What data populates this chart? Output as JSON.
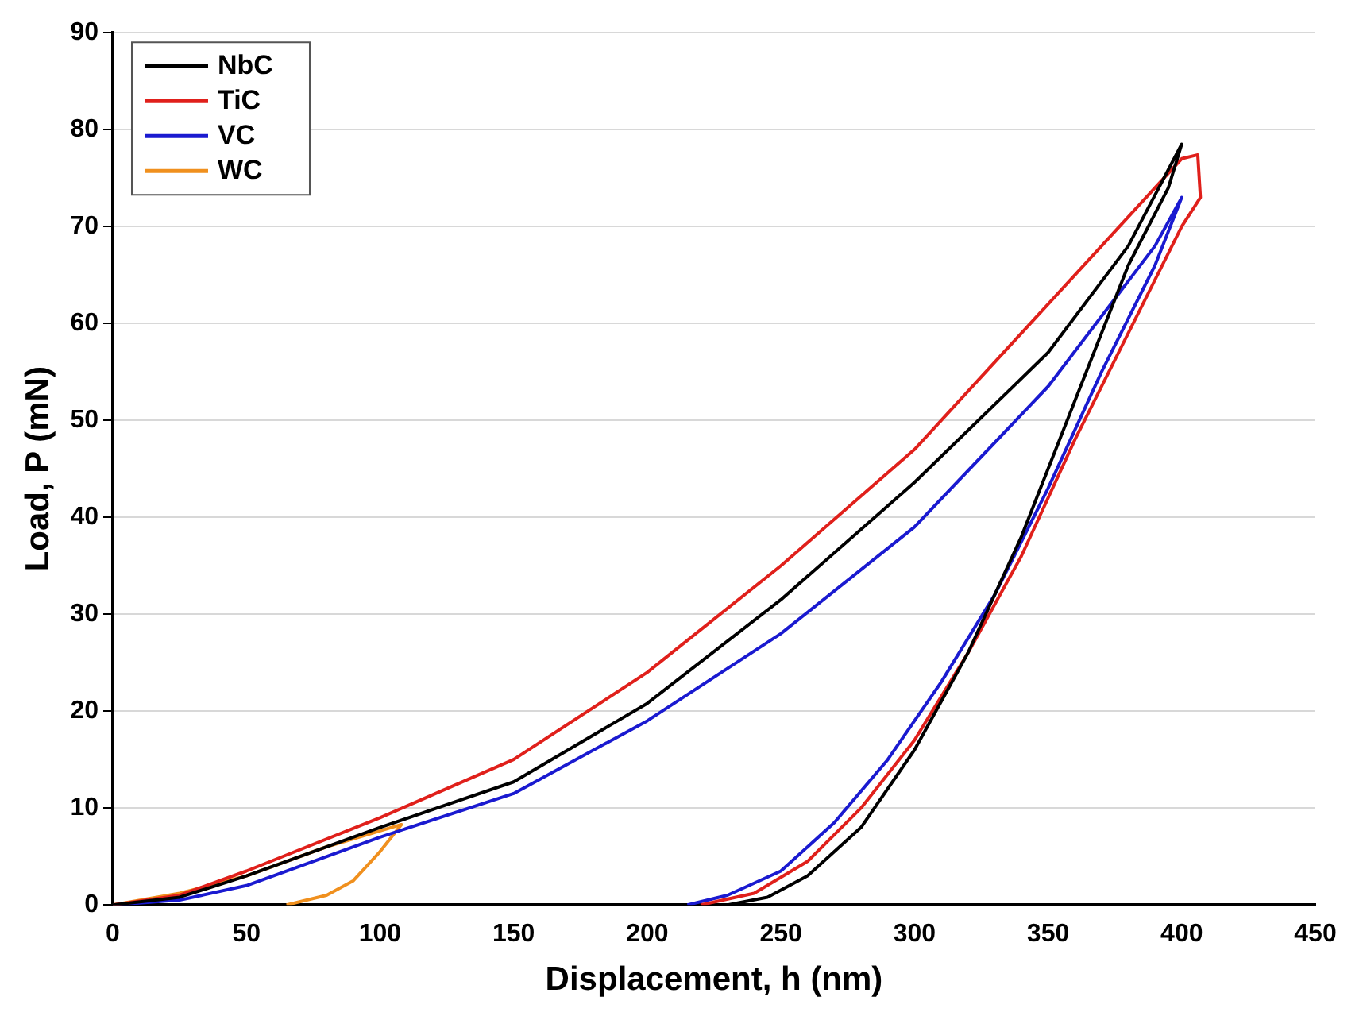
{
  "chart_data": {
    "type": "line",
    "xlabel": "Displacement, h (nm)",
    "ylabel": "Load, P (mN)",
    "xlim": [
      0,
      450
    ],
    "ylim": [
      0,
      90
    ],
    "xticks": [
      0,
      50,
      100,
      150,
      200,
      250,
      300,
      350,
      400,
      450
    ],
    "yticks": [
      0,
      10,
      20,
      30,
      40,
      50,
      60,
      70,
      80,
      90
    ],
    "grid": "y",
    "legend": "top left",
    "marker": "none",
    "line_style": "solid",
    "series": [
      {
        "name": "NbC",
        "color": "#000000",
        "x": [
          0,
          25,
          50,
          100,
          150,
          200,
          250,
          300,
          350,
          380,
          400,
          395,
          380,
          360,
          340,
          320,
          300,
          280,
          260,
          245,
          230
        ],
        "values": [
          0,
          0.8,
          3,
          8,
          12.7,
          20.8,
          31.5,
          43.6,
          57,
          68,
          78.5,
          74,
          66,
          52,
          38,
          26,
          16,
          8,
          3,
          0.8,
          0
        ]
      },
      {
        "name": "TiC",
        "color": "#e0201b",
        "x": [
          0,
          25,
          50,
          100,
          150,
          200,
          250,
          300,
          350,
          390,
          400,
          406,
          407,
          400,
          380,
          360,
          340,
          320,
          300,
          280,
          260,
          240,
          220
        ],
        "values": [
          0,
          1,
          3.5,
          9,
          15,
          24,
          35,
          47,
          62,
          74,
          77,
          77.4,
          73,
          70,
          59,
          48,
          36,
          26,
          17,
          10,
          4.5,
          1.2,
          0
        ]
      },
      {
        "name": "VC",
        "color": "#1a1ad0",
        "x": [
          0,
          25,
          50,
          100,
          150,
          200,
          250,
          300,
          350,
          390,
          400,
          390,
          370,
          350,
          330,
          310,
          290,
          270,
          250,
          230,
          215
        ],
        "values": [
          0,
          0.5,
          2,
          7,
          11.5,
          19,
          28,
          39,
          53.5,
          68,
          73,
          66,
          55,
          43,
          32,
          23,
          15,
          8.5,
          3.5,
          1,
          0
        ]
      },
      {
        "name": "WC",
        "color": "#f0901e",
        "x": [
          0,
          25,
          50,
          80,
          108,
          100,
          90,
          80,
          65
        ],
        "values": [
          0,
          1.2,
          3,
          6,
          8.3,
          5.5,
          2.5,
          1,
          0
        ]
      }
    ]
  }
}
